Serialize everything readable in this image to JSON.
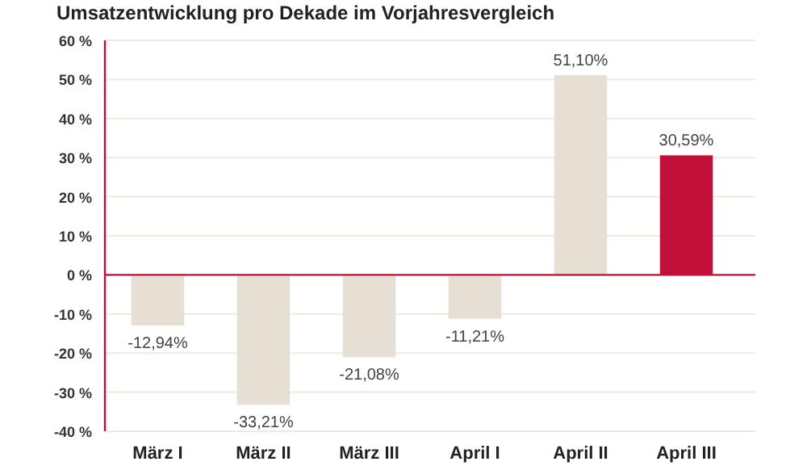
{
  "chart_data": {
    "type": "bar",
    "title": "Umsatzentwicklung pro Dekade im Vorjahresvergleich",
    "categories": [
      "März I",
      "März II",
      "März III",
      "April I",
      "April II",
      "April III"
    ],
    "values": [
      -12.94,
      -33.21,
      -21.08,
      -11.21,
      51.1,
      30.59
    ],
    "colors": [
      "#e6dfd3",
      "#e6dfd3",
      "#e6dfd3",
      "#e6dfd3",
      "#e6dfd3",
      "#c0103a"
    ],
    "value_labels": [
      "-12,94%",
      "-33,21%",
      "-21,08%",
      "-11,21%",
      "51,10%",
      "30,59%"
    ],
    "ylim": [
      -40,
      60
    ],
    "yticks": [
      {
        "value": -40,
        "label": "-40 %"
      },
      {
        "value": -30,
        "label": "-30 %"
      },
      {
        "value": -20,
        "label": "-20 %"
      },
      {
        "value": -10,
        "label": "-10 %"
      },
      {
        "value": 0,
        "label": "0 %"
      },
      {
        "value": 10,
        "label": "10 %"
      },
      {
        "value": 20,
        "label": "20 %"
      },
      {
        "value": 30,
        "label": "30 %"
      },
      {
        "value": 40,
        "label": "40 %"
      },
      {
        "value": 50,
        "label": "50 %"
      },
      {
        "value": 60,
        "label": "60 %"
      }
    ],
    "grid": "y",
    "ref_lines": [
      {
        "axis": "y",
        "value": 0,
        "color": "#c0103a"
      }
    ]
  }
}
